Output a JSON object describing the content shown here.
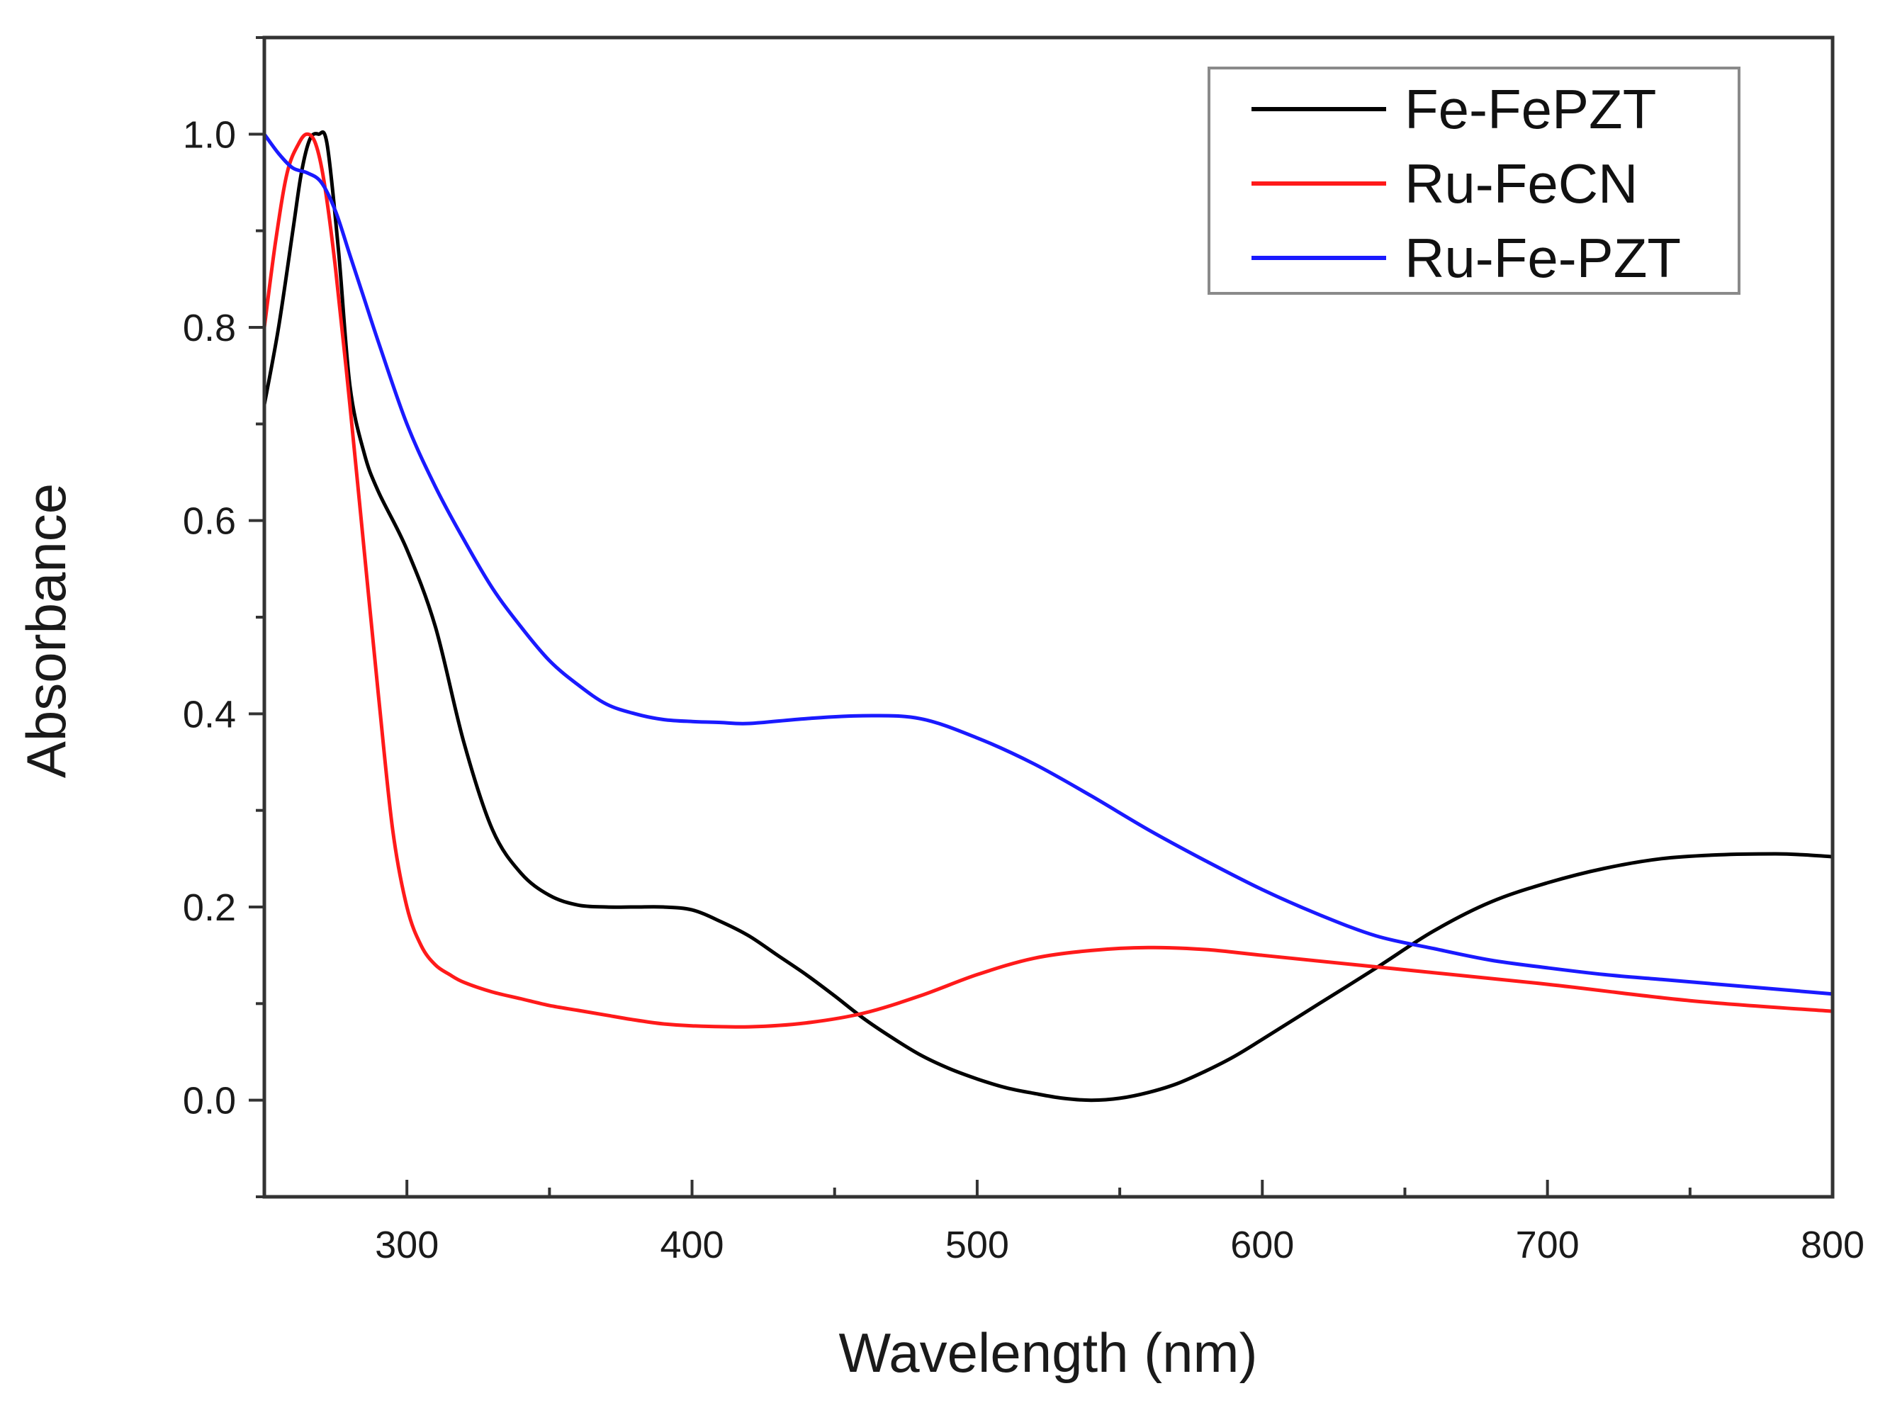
{
  "chart_data": {
    "type": "line",
    "title": "",
    "xlabel": "Wavelength (nm)",
    "ylabel": "Absorbance",
    "xlim": [
      250,
      800
    ],
    "ylim": [
      -0.1,
      1.1
    ],
    "xticks": [
      300,
      400,
      500,
      600,
      700,
      800
    ],
    "xtick_labels": [
      "300",
      "400",
      "500",
      "600",
      "700",
      "800"
    ],
    "yticks": [
      0.0,
      0.2,
      0.4,
      0.6,
      0.8,
      1.0
    ],
    "ytick_labels": [
      "0.0",
      "0.2",
      "0.4",
      "0.6",
      "0.8",
      "1.0"
    ],
    "grid": false,
    "legend_position": "top-right",
    "series": [
      {
        "name": "Fe-FePZT",
        "color": "#000000",
        "x": [
          250,
          255,
          260,
          263,
          266,
          269,
          272,
          276,
          280,
          285,
          290,
          300,
          310,
          320,
          330,
          340,
          350,
          360,
          370,
          380,
          390,
          400,
          410,
          420,
          430,
          440,
          450,
          460,
          470,
          480,
          490,
          500,
          510,
          520,
          530,
          540,
          550,
          560,
          570,
          580,
          590,
          600,
          620,
          640,
          660,
          680,
          700,
          720,
          740,
          760,
          780,
          790,
          800
        ],
        "y": [
          0.72,
          0.8,
          0.9,
          0.96,
          0.995,
          1.0,
          0.99,
          0.88,
          0.74,
          0.67,
          0.63,
          0.57,
          0.49,
          0.37,
          0.28,
          0.235,
          0.212,
          0.202,
          0.2,
          0.2,
          0.2,
          0.197,
          0.185,
          0.17,
          0.15,
          0.13,
          0.108,
          0.085,
          0.065,
          0.047,
          0.033,
          0.022,
          0.013,
          0.007,
          0.002,
          0.0,
          0.002,
          0.008,
          0.017,
          0.03,
          0.045,
          0.063,
          0.1,
          0.137,
          0.175,
          0.205,
          0.225,
          0.24,
          0.25,
          0.254,
          0.255,
          0.254,
          0.252
        ]
      },
      {
        "name": "Ru-FeCN",
        "color": "#ff1a1a",
        "x": [
          250,
          254,
          258,
          262,
          265,
          268,
          271,
          275,
          280,
          285,
          290,
          295,
          300,
          305,
          310,
          315,
          320,
          330,
          340,
          350,
          360,
          370,
          380,
          390,
          400,
          420,
          440,
          460,
          480,
          500,
          520,
          540,
          560,
          580,
          600,
          650,
          700,
          750,
          800
        ],
        "y": [
          0.8,
          0.89,
          0.96,
          0.99,
          1.0,
          0.99,
          0.95,
          0.86,
          0.72,
          0.57,
          0.42,
          0.28,
          0.2,
          0.16,
          0.14,
          0.13,
          0.122,
          0.112,
          0.105,
          0.098,
          0.093,
          0.088,
          0.083,
          0.079,
          0.077,
          0.076,
          0.08,
          0.09,
          0.108,
          0.13,
          0.147,
          0.155,
          0.158,
          0.156,
          0.15,
          0.135,
          0.12,
          0.103,
          0.092
        ]
      },
      {
        "name": "Ru-Fe-PZT",
        "color": "#1a1aff",
        "x": [
          250,
          255,
          260,
          265,
          270,
          275,
          280,
          285,
          290,
          300,
          310,
          320,
          330,
          340,
          350,
          360,
          370,
          380,
          390,
          400,
          410,
          420,
          440,
          460,
          480,
          500,
          520,
          540,
          560,
          580,
          600,
          620,
          640,
          660,
          680,
          700,
          720,
          740,
          760,
          780,
          800
        ],
        "y": [
          1.0,
          0.98,
          0.965,
          0.96,
          0.95,
          0.92,
          0.875,
          0.83,
          0.785,
          0.7,
          0.635,
          0.58,
          0.53,
          0.49,
          0.455,
          0.43,
          0.41,
          0.4,
          0.394,
          0.392,
          0.391,
          0.39,
          0.395,
          0.398,
          0.395,
          0.375,
          0.348,
          0.315,
          0.28,
          0.248,
          0.218,
          0.192,
          0.17,
          0.157,
          0.145,
          0.137,
          0.13,
          0.125,
          0.12,
          0.115,
          0.11
        ]
      }
    ]
  }
}
